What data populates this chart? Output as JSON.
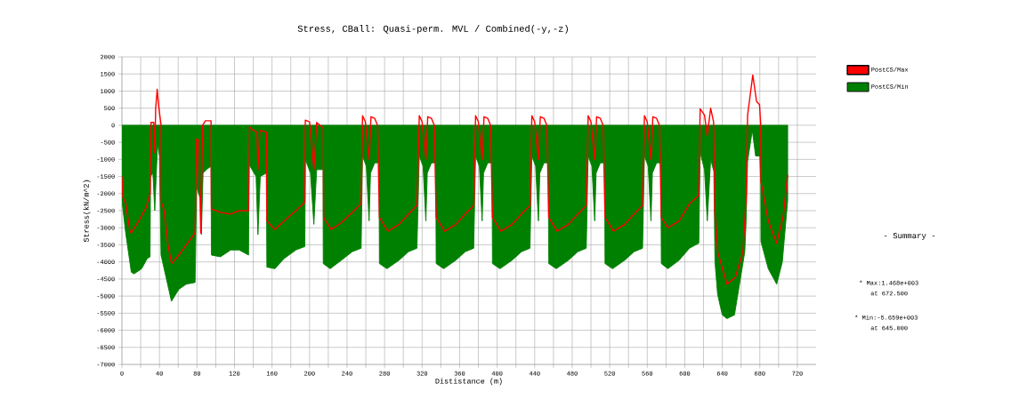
{
  "chart_data": {
    "type": "area",
    "title": "Stress, CBall: Quasi-perm. MVL / Combined(-y,-z)",
    "xlabel": "Dististance (m)",
    "ylabel": "Stress(kN/m^2)",
    "xlim": [
      0,
      740
    ],
    "ylim": [
      -7000,
      2000
    ],
    "xticks": [
      0,
      {
        "value": 20,
        "label": null
      },
      40,
      {
        "value": 60,
        "label": null
      },
      80,
      {
        "value": 100,
        "label": null
      },
      120,
      {
        "value": 140,
        "label": null
      },
      160,
      {
        "value": 180,
        "label": null
      },
      200,
      {
        "value": 220,
        "label": null
      },
      240,
      {
        "value": 260,
        "label": null
      },
      280,
      {
        "value": 300,
        "label": null
      },
      320,
      {
        "value": 340,
        "label": null
      },
      360,
      {
        "value": 380,
        "label": null
      },
      400,
      {
        "value": 420,
        "label": null
      },
      440,
      {
        "value": 460,
        "label": null
      },
      480,
      {
        "value": 500,
        "label": null
      },
      520,
      {
        "value": 540,
        "label": null
      },
      560,
      {
        "value": 580,
        "label": null
      },
      600,
      {
        "value": 620,
        "label": null
      },
      640,
      {
        "value": 660,
        "label": null
      },
      680,
      {
        "value": 700,
        "label": null
      },
      720
    ],
    "yticks": [
      -7000,
      -6500,
      -6000,
      -5500,
      -5000,
      -4500,
      -4000,
      -3500,
      -3000,
      -2500,
      -2000,
      -1500,
      -1000,
      -500,
      0,
      500,
      1000,
      1500,
      2000
    ],
    "grid": true,
    "legend": "right",
    "series": [
      {
        "name": "PostCS/Max",
        "color": "#ff0000",
        "type": "line",
        "x": [
          0,
          1,
          4,
          8.5,
          10,
          18,
          26,
          30,
          31,
          34,
          35,
          36,
          37.6,
          39,
          41.7,
          42,
          45,
          49,
          53,
          60.7,
          68.6,
          78,
          79.6,
          82,
          84,
          86,
          89,
          95,
          95.4,
          105,
          116,
          125,
          135,
          136,
          140,
          144,
          145,
          147,
          154,
          154.5,
          163,
          173,
          185.5,
          195,
          195.5,
          200,
          204.6,
          207.6,
          214.6,
          215,
          223,
          234,
          245.5,
          255,
          256.5,
          259.5,
          263.5,
          265.5,
          269.5,
          272.5,
          274.5,
          283.5,
          295.5,
          305.5,
          314.5,
          317,
          320,
          324,
          326,
          330,
          333,
          335,
          344,
          356,
          366,
          375,
          377,
          380,
          384,
          386,
          390,
          393,
          395,
          404,
          416,
          426,
          435,
          437,
          440,
          444,
          446,
          450,
          453,
          455,
          464,
          476,
          486,
          495,
          497,
          500,
          504,
          506,
          510,
          513,
          515,
          524,
          536,
          546,
          555,
          557,
          560,
          564,
          566,
          570,
          573,
          575,
          582,
          594,
          605,
          615,
          616.4,
          621,
          624,
          627.6,
          630.7,
          632.2,
          635,
          645,
          654,
          662,
          665.4,
          667,
          672.5,
          676.5,
          679.7,
          681,
          681.2,
          689,
          698,
          705,
          709.7
        ],
        "values": [
          -1500,
          -2100,
          -2300,
          -3100,
          -3150,
          -2800,
          -2400,
          -2000,
          80,
          80,
          -800,
          500,
          1050,
          600,
          0,
          -2250,
          -2500,
          -3500,
          -4050,
          -3800,
          -3500,
          -3150,
          -400,
          -450,
          -3150,
          0,
          130,
          130,
          -2450,
          -2550,
          -2600,
          -2500,
          -2500,
          -50,
          -150,
          -200,
          -1300,
          -150,
          -200,
          -2800,
          -3050,
          -2800,
          -2500,
          -2250,
          150,
          100,
          -1300,
          80,
          -80,
          -2700,
          -3050,
          -2850,
          -2550,
          -2300,
          280,
          100,
          -1000,
          250,
          200,
          0,
          -2700,
          -3100,
          -2900,
          -2600,
          -2350,
          280,
          100,
          -1000,
          250,
          200,
          0,
          -2700,
          -3100,
          -2900,
          -2600,
          -2350,
          280,
          100,
          -1000,
          250,
          200,
          0,
          -2700,
          -3100,
          -2900,
          -2600,
          -2350,
          280,
          100,
          -1000,
          250,
          200,
          0,
          -2700,
          -3100,
          -2900,
          -2600,
          -2350,
          280,
          100,
          -1000,
          250,
          200,
          0,
          -2700,
          -3100,
          -2900,
          -2600,
          -2350,
          280,
          100,
          -1000,
          250,
          200,
          0,
          -2700,
          -3000,
          -2800,
          -2300,
          -2050,
          480,
          300,
          -300,
          500,
          100,
          -2550,
          -3700,
          -4650,
          -4450,
          -3700,
          -2150,
          300,
          1468,
          700,
          600,
          0,
          -1650,
          -2800,
          -3450,
          -2650,
          -1450
        ]
      },
      {
        "name": "PostCS/Min",
        "color": "#008000",
        "x": [
          0,
          4,
          10,
          13,
          21,
          27,
          30,
          30.5,
          33,
          35,
          38,
          40,
          41.7,
          52.8,
          60.7,
          68.6,
          78,
          79.6,
          84,
          84.7,
          86.5,
          90,
          95,
          95.4,
          105,
          116,
          125,
          135,
          135.5,
          143,
          145,
          147.5,
          154,
          154.5,
          163,
          173,
          185.5,
          195,
          195.5,
          201,
          204.6,
          207.6,
          214.4,
          214.6,
          222,
          234,
          245.5,
          255,
          256.5,
          260.5,
          263.5,
          265,
          269.5,
          274,
          274.5,
          282.5,
          295.5,
          305.5,
          314.5,
          317,
          321,
          324,
          325.5,
          330,
          334.5,
          335,
          343,
          356,
          366,
          375,
          377,
          381,
          384,
          385.5,
          390,
          394.5,
          395,
          403,
          416,
          426,
          435,
          437,
          441,
          444,
          445.5,
          450,
          454.5,
          455,
          463,
          476,
          486,
          495,
          497,
          501,
          504,
          505.5,
          510,
          514.5,
          515,
          523,
          536,
          546,
          555,
          557,
          561,
          564,
          565.5,
          570,
          574.5,
          575,
          582,
          594,
          605,
          615,
          616.4,
          621,
          624,
          627.6,
          631,
          632.2,
          635,
          640,
          645,
          653,
          664,
          665.4,
          667,
          672,
          675.5,
          680,
          681,
          681.2,
          689,
          698,
          704,
          709.7
        ],
        "values": [
          -2200,
          -3150,
          -4300,
          -4350,
          -4200,
          -3900,
          -3850,
          -1500,
          -1400,
          -2500,
          -550,
          -900,
          -3800,
          -5150,
          -4800,
          -4650,
          -4600,
          -1800,
          -2200,
          -3200,
          -1400,
          -1300,
          -1200,
          -3800,
          -3850,
          -3650,
          -3650,
          -3800,
          -1150,
          -1500,
          -3200,
          -1500,
          -1400,
          -4150,
          -4200,
          -3900,
          -3650,
          -3550,
          -1000,
          -1400,
          -2900,
          -1300,
          -1300,
          -4050,
          -4200,
          -3950,
          -3700,
          -3600,
          -900,
          -1200,
          -2800,
          -1400,
          -1100,
          -1100,
          -4050,
          -4200,
          -3950,
          -3700,
          -3600,
          -900,
          -1200,
          -2800,
          -1400,
          -1100,
          -1100,
          -4050,
          -4200,
          -3950,
          -3700,
          -3600,
          -900,
          -1200,
          -2800,
          -1400,
          -1100,
          -1100,
          -4050,
          -4200,
          -3950,
          -3700,
          -3600,
          -900,
          -1200,
          -2800,
          -1400,
          -1100,
          -1100,
          -4050,
          -4200,
          -3950,
          -3700,
          -3600,
          -900,
          -1200,
          -2800,
          -1400,
          -1100,
          -1100,
          -4050,
          -4200,
          -3950,
          -3700,
          -3600,
          -900,
          -1200,
          -2800,
          -1400,
          -1100,
          -1100,
          -4050,
          -4200,
          -3950,
          -3600,
          -3450,
          -800,
          -1300,
          -2800,
          -1000,
          -1350,
          -4000,
          -4950,
          -5550,
          -5659,
          -5550,
          -3700,
          -2800,
          -1050,
          -150,
          -900,
          -900,
          -1700,
          -3400,
          -4200,
          -4650,
          -4000,
          -2200
        ]
      }
    ],
    "annotations": [
      "- Summary -",
      "* Max:1.468e+003",
      "at 672.500",
      "* Min:-5.659e+003",
      "at 645.000"
    ]
  }
}
